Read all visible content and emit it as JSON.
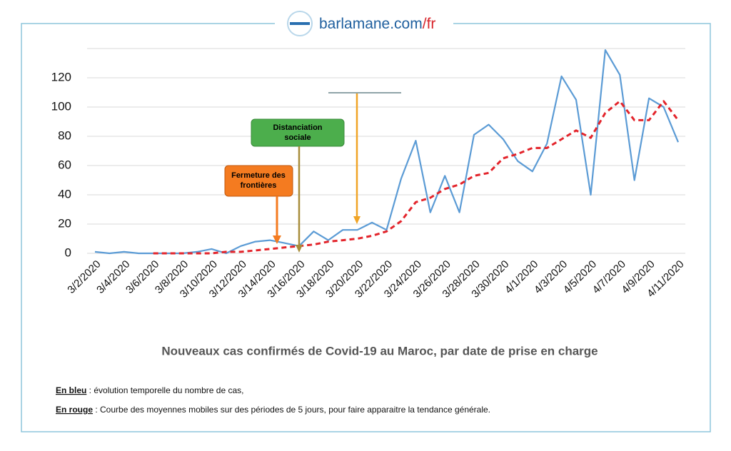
{
  "header": {
    "brand": "barlamane.com",
    "brand_suffix": "/fr"
  },
  "chart_data": {
    "type": "line",
    "title": "Nouveaux cas confirmés de Covid-19 au Maroc, par date de prise en charge",
    "categories": [
      "3/2/2020",
      null,
      "3/4/2020",
      null,
      "3/6/2020",
      null,
      "3/8/2020",
      null,
      "3/10/2020",
      null,
      "3/12/2020",
      null,
      "3/14/2020",
      null,
      "3/16/2020",
      null,
      "3/18/2020",
      null,
      "3/20/2020",
      null,
      "3/22/2020",
      null,
      "3/24/2020",
      null,
      "3/26/2020",
      null,
      "3/28/2020",
      null,
      "3/30/2020",
      null,
      "4/1/2020",
      null,
      "4/3/2020",
      null,
      "4/5/2020",
      null,
      "4/7/2020",
      null,
      "4/9/2020",
      null,
      "4/11/2020"
    ],
    "series": [
      {
        "name": "En bleu",
        "color": "#5b9bd5",
        "dashed": false,
        "values": [
          1,
          0,
          1,
          0,
          0,
          0,
          0,
          1,
          3,
          0,
          5,
          8,
          9,
          7,
          5,
          15,
          9,
          16,
          16,
          21,
          16,
          51,
          77,
          28,
          53,
          28,
          81,
          88,
          78,
          63,
          56,
          75,
          121,
          105,
          40,
          139,
          122,
          50,
          106,
          100,
          76
        ]
      },
      {
        "name": "En rouge",
        "color": "#e3242b",
        "dashed": true,
        "values": [
          null,
          null,
          null,
          null,
          0,
          0,
          0,
          0,
          0,
          1,
          1,
          2,
          3,
          4,
          5,
          6,
          8,
          9,
          10,
          12,
          15,
          22,
          35,
          38,
          44,
          47,
          53,
          55,
          65,
          68,
          72,
          72,
          78,
          84,
          79,
          96,
          104,
          91,
          91,
          104,
          91
        ]
      }
    ],
    "ylim": [
      0,
      140
    ],
    "yticks": [
      0,
      20,
      40,
      60,
      80,
      100,
      120
    ],
    "grid": true,
    "annotations": [
      "Fermeture des frontières",
      "Distanciation sociale"
    ],
    "notes": [
      {
        "label": "En bleu",
        "text": " : évolution temporelle du nombre de cas,"
      },
      {
        "label": "En rouge",
        "text": " : Courbe des moyennes mobiles sur des périodes de 5 jours, pour faire apparaitre la tendance générale."
      }
    ]
  }
}
